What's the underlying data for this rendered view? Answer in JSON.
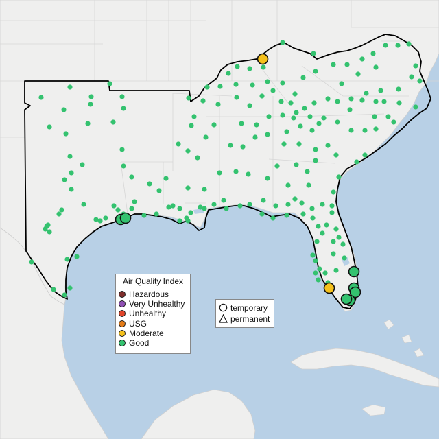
{
  "legend": {
    "title": "Air Quality Index",
    "categories": [
      {
        "label": "Hazardous",
        "color": "#7e2e2b"
      },
      {
        "label": "Very Unhealthy",
        "color": "#8f4fb3"
      },
      {
        "label": "Unhealthy",
        "color": "#e0452a"
      },
      {
        "label": "USG",
        "color": "#e37b18"
      },
      {
        "label": "Moderate",
        "color": "#f5c11c"
      },
      {
        "label": "Good",
        "color": "#34c26f"
      }
    ]
  },
  "type_legend": {
    "temporary": "temporary",
    "permanent": "permanent"
  },
  "colors": {
    "water": "#b8d0e6",
    "land": "#efefee",
    "land_border": "#d0d0d0",
    "region_outline": "#000000",
    "good": "#34c26f",
    "moderate": "#f5c11c"
  }
}
